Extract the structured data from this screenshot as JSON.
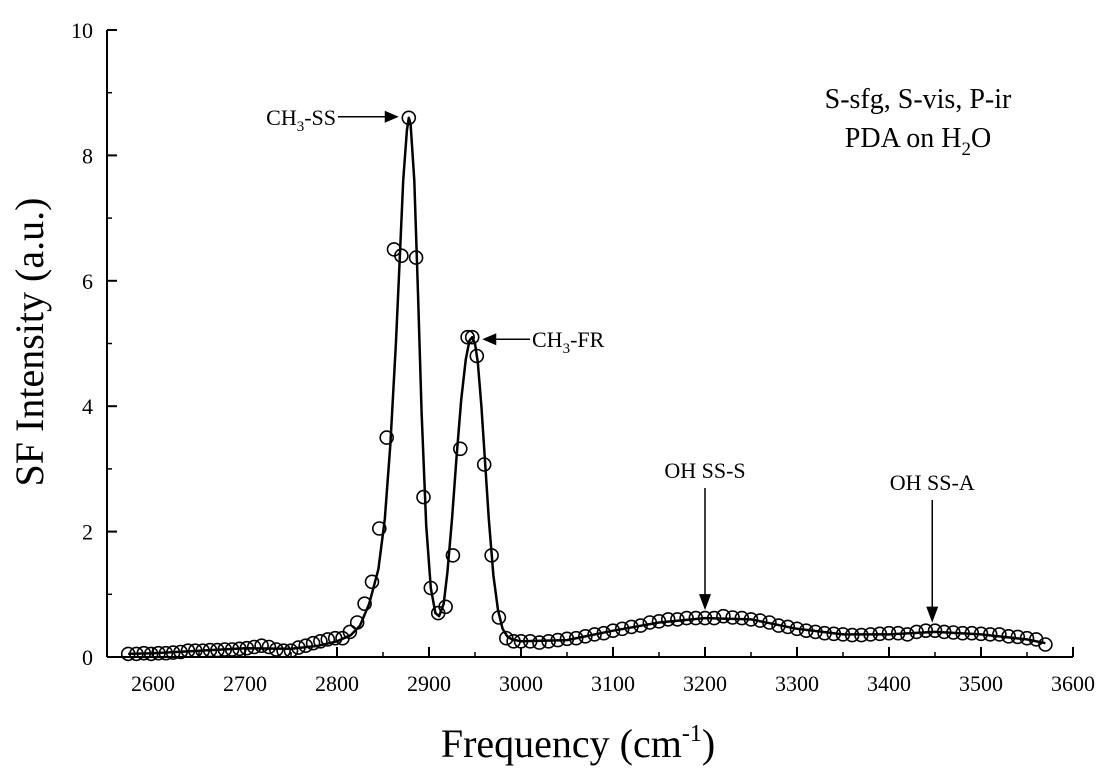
{
  "chart_data": {
    "type": "scatter",
    "xlabel": "Frequency (cm",
    "xlabel_sup": "-1",
    "xlabel_close": ")",
    "ylabel": "SF Intensity (a.u.)",
    "xlim": [
      2550,
      3600
    ],
    "ylim": [
      0,
      10
    ],
    "xticks": [
      2600,
      2700,
      2800,
      2900,
      3000,
      3100,
      3200,
      3300,
      3400,
      3500,
      3600
    ],
    "yticks": [
      0,
      2,
      4,
      6,
      8,
      10
    ],
    "grid": false,
    "legend_text": {
      "line1": "S-sfg, S-vis, P-ir",
      "line2_prefix": "PDA on H",
      "line2_sub": "2",
      "line2_suffix": "O"
    },
    "annotations": [
      {
        "pre": "CH",
        "sub": "3",
        "post": "-SS",
        "x": 2878,
        "y": 8.6
      },
      {
        "pre": "CH",
        "sub": "3",
        "post": "-FR",
        "x": 2947,
        "y": 5.1
      },
      {
        "pre": "OH SS-S",
        "sub": "",
        "post": "",
        "x": 3200,
        "y": 0.62
      },
      {
        "pre": "OH SS-A",
        "sub": "",
        "post": "",
        "x": 3447,
        "y": 0.42
      }
    ],
    "series": [
      {
        "kind": "points",
        "x": [
          2573,
          2582,
          2590,
          2598,
          2606,
          2614,
          2622,
          2630,
          2638,
          2646,
          2654,
          2662,
          2670,
          2678,
          2686,
          2694,
          2702,
          2710,
          2718,
          2726,
          2734,
          2742,
          2750,
          2758,
          2766,
          2774,
          2782,
          2790,
          2798,
          2806,
          2814,
          2822,
          2830,
          2838,
          2846,
          2854,
          2862,
          2870,
          2878,
          2886,
          2894,
          2902,
          2910,
          2918,
          2926,
          2934,
          2942,
          2947,
          2952,
          2960,
          2968,
          2976,
          2984,
          2992,
          3000,
          3010,
          3020,
          3030,
          3040,
          3050,
          3060,
          3070,
          3080,
          3090,
          3100,
          3110,
          3120,
          3130,
          3140,
          3150,
          3160,
          3170,
          3180,
          3190,
          3200,
          3210,
          3220,
          3230,
          3240,
          3250,
          3260,
          3270,
          3280,
          3290,
          3300,
          3310,
          3320,
          3330,
          3340,
          3350,
          3360,
          3370,
          3380,
          3390,
          3400,
          3410,
          3420,
          3430,
          3440,
          3450,
          3460,
          3470,
          3480,
          3490,
          3500,
          3510,
          3520,
          3530,
          3540,
          3550,
          3560,
          3570
        ],
        "y": [
          0.05,
          0.05,
          0.06,
          0.05,
          0.06,
          0.06,
          0.07,
          0.08,
          0.1,
          0.1,
          0.1,
          0.11,
          0.11,
          0.12,
          0.12,
          0.13,
          0.14,
          0.16,
          0.18,
          0.16,
          0.12,
          0.1,
          0.1,
          0.15,
          0.18,
          0.22,
          0.25,
          0.28,
          0.3,
          0.3,
          0.4,
          0.55,
          0.85,
          1.2,
          2.05,
          3.5,
          6.5,
          6.4,
          8.6,
          6.37,
          2.55,
          1.1,
          0.7,
          0.8,
          1.62,
          3.32,
          5.1,
          5.1,
          4.8,
          3.07,
          1.62,
          0.63,
          0.3,
          0.25,
          0.25,
          0.25,
          0.23,
          0.25,
          0.27,
          0.29,
          0.3,
          0.33,
          0.36,
          0.38,
          0.42,
          0.45,
          0.48,
          0.5,
          0.55,
          0.57,
          0.6,
          0.6,
          0.62,
          0.62,
          0.62,
          0.62,
          0.65,
          0.63,
          0.62,
          0.6,
          0.58,
          0.55,
          0.5,
          0.48,
          0.45,
          0.42,
          0.4,
          0.38,
          0.37,
          0.36,
          0.35,
          0.35,
          0.36,
          0.37,
          0.38,
          0.38,
          0.36,
          0.4,
          0.42,
          0.42,
          0.4,
          0.39,
          0.38,
          0.38,
          0.37,
          0.36,
          0.36,
          0.33,
          0.32,
          0.3,
          0.28,
          0.2
        ]
      },
      {
        "kind": "fit",
        "x": [
          2573,
          2600,
          2650,
          2700,
          2750,
          2780,
          2800,
          2815,
          2825,
          2835,
          2845,
          2852,
          2858,
          2864,
          2868,
          2872,
          2876,
          2878,
          2880,
          2884,
          2888,
          2892,
          2897,
          2902,
          2907,
          2911,
          2916,
          2920,
          2925,
          2930,
          2935,
          2940,
          2944,
          2947,
          2950,
          2953,
          2957,
          2961,
          2965,
          2970,
          2975,
          2980,
          2985,
          2990,
          3000,
          3050,
          3100,
          3150,
          3200,
          3250,
          3300,
          3350,
          3400,
          3450,
          3500,
          3550,
          3570
        ],
        "y": [
          0.05,
          0.06,
          0.1,
          0.14,
          0.13,
          0.18,
          0.25,
          0.35,
          0.5,
          0.85,
          1.4,
          2.2,
          3.4,
          5.0,
          6.3,
          7.6,
          8.4,
          8.6,
          8.5,
          7.6,
          5.8,
          3.9,
          2.1,
          1.1,
          0.7,
          0.65,
          0.85,
          1.35,
          2.2,
          3.2,
          4.1,
          4.75,
          5.05,
          5.1,
          5.0,
          4.7,
          4.0,
          3.1,
          2.2,
          1.3,
          0.75,
          0.45,
          0.33,
          0.28,
          0.25,
          0.27,
          0.42,
          0.55,
          0.62,
          0.6,
          0.45,
          0.36,
          0.36,
          0.4,
          0.36,
          0.28,
          0.22
        ]
      }
    ]
  }
}
